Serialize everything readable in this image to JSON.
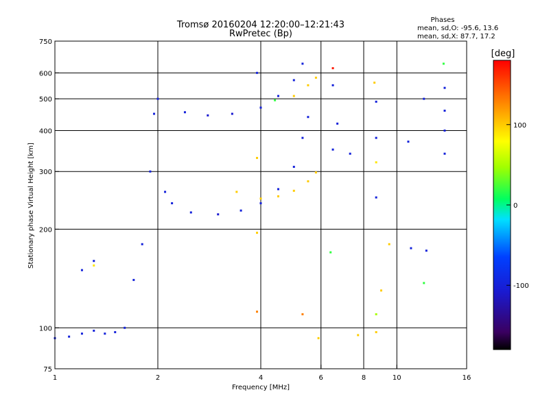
{
  "chart_data": {
    "type": "scatter",
    "title": "Tromsø 20160204 12:20:00–12:21:43",
    "subtitle": "RwPretec (Bp)",
    "xlabel": "Frequency [MHz]",
    "ylabel": "Stationary phase Virtual Height [km]",
    "x_scale": "log",
    "y_scale": "log",
    "xlim": [
      1,
      16
    ],
    "ylim": [
      75,
      750
    ],
    "x_ticks": [
      1,
      2,
      4,
      6,
      8,
      10,
      16
    ],
    "x_tick_labels": [
      "1",
      "2",
      "4",
      "6",
      "8",
      "10",
      "16"
    ],
    "y_ticks": [
      75,
      100,
      200,
      300,
      400,
      500,
      600,
      750
    ],
    "y_tick_labels": [
      "75",
      "100",
      "200",
      "300",
      "400",
      "500",
      "600",
      "750"
    ],
    "x_gridlines": [
      2,
      4,
      6,
      8,
      10
    ],
    "y_gridlines": [
      100,
      200,
      300,
      400,
      500,
      600
    ],
    "stats": {
      "heading": "Phases",
      "line1": "mean, sd,O:  -95.6,  13.6",
      "line2": "mean, sd,X:   87.7,  17.2"
    },
    "colorbar": {
      "label": "[deg]",
      "range": [
        -180,
        180
      ],
      "ticks": [
        100,
        0,
        -100
      ],
      "tick_labels": [
        "100",
        "0",
        "-100"
      ]
    },
    "series": [
      {
        "values": [
          {
            "x": 1.0,
            "y": 93,
            "c": -100
          },
          {
            "x": 1.1,
            "y": 94,
            "c": -100
          },
          {
            "x": 1.2,
            "y": 96,
            "c": -100
          },
          {
            "x": 1.3,
            "y": 98,
            "c": -100
          },
          {
            "x": 1.4,
            "y": 96,
            "c": -100
          },
          {
            "x": 1.5,
            "y": 97,
            "c": -100
          },
          {
            "x": 1.6,
            "y": 100,
            "c": -100
          },
          {
            "x": 1.2,
            "y": 150,
            "c": -100
          },
          {
            "x": 1.3,
            "y": 160,
            "c": -100
          },
          {
            "x": 1.7,
            "y": 140,
            "c": -100
          },
          {
            "x": 1.8,
            "y": 180,
            "c": -100
          },
          {
            "x": 1.9,
            "y": 300,
            "c": -100
          },
          {
            "x": 1.95,
            "y": 450,
            "c": -100
          },
          {
            "x": 2.0,
            "y": 500,
            "c": -100
          },
          {
            "x": 2.1,
            "y": 260,
            "c": -100
          },
          {
            "x": 2.2,
            "y": 240,
            "c": -100
          },
          {
            "x": 2.5,
            "y": 225,
            "c": -100
          },
          {
            "x": 3.0,
            "y": 222,
            "c": -110
          },
          {
            "x": 3.5,
            "y": 228,
            "c": -100
          },
          {
            "x": 4.0,
            "y": 240,
            "c": -100
          },
          {
            "x": 4.5,
            "y": 265,
            "c": -100
          },
          {
            "x": 5.0,
            "y": 310,
            "c": -100
          },
          {
            "x": 5.3,
            "y": 380,
            "c": -100
          },
          {
            "x": 5.5,
            "y": 440,
            "c": -100
          },
          {
            "x": 2.4,
            "y": 455,
            "c": -100
          },
          {
            "x": 2.8,
            "y": 445,
            "c": -110
          },
          {
            "x": 3.3,
            "y": 450,
            "c": -110
          },
          {
            "x": 4.0,
            "y": 470,
            "c": -100
          },
          {
            "x": 4.5,
            "y": 510,
            "c": -100
          },
          {
            "x": 5.0,
            "y": 570,
            "c": -100
          },
          {
            "x": 5.3,
            "y": 640,
            "c": -100
          }
        ]
      },
      {
        "values": [
          {
            "x": 1.3,
            "y": 155,
            "c": 90
          },
          {
            "x": 3.4,
            "y": 260,
            "c": 100
          },
          {
            "x": 4.0,
            "y": 248,
            "c": 100
          },
          {
            "x": 4.5,
            "y": 252,
            "c": 100
          },
          {
            "x": 5.0,
            "y": 262,
            "c": 100
          },
          {
            "x": 5.5,
            "y": 280,
            "c": 100
          },
          {
            "x": 5.8,
            "y": 298,
            "c": 100
          },
          {
            "x": 5.0,
            "y": 510,
            "c": 100
          },
          {
            "x": 5.5,
            "y": 550,
            "c": 100
          },
          {
            "x": 5.8,
            "y": 580,
            "c": 100
          },
          {
            "x": 4.4,
            "y": 495,
            "c": 20
          }
        ]
      },
      {
        "values": [
          {
            "x": 6.5,
            "y": 620,
            "c": 170
          },
          {
            "x": 6.5,
            "y": 550,
            "c": -100
          },
          {
            "x": 6.7,
            "y": 420,
            "c": -100
          },
          {
            "x": 6.5,
            "y": 350,
            "c": -100
          },
          {
            "x": 7.3,
            "y": 340,
            "c": -100
          },
          {
            "x": 8.6,
            "y": 560,
            "c": 100
          },
          {
            "x": 8.7,
            "y": 490,
            "c": -100
          },
          {
            "x": 8.7,
            "y": 380,
            "c": -100
          },
          {
            "x": 8.7,
            "y": 320,
            "c": 90
          },
          {
            "x": 8.7,
            "y": 250,
            "c": -100
          },
          {
            "x": 9.5,
            "y": 180,
            "c": 100
          },
          {
            "x": 10.8,
            "y": 370,
            "c": -100
          },
          {
            "x": 11.0,
            "y": 175,
            "c": -100
          },
          {
            "x": 12.0,
            "y": 500,
            "c": -100
          },
          {
            "x": 12.2,
            "y": 172,
            "c": -100
          },
          {
            "x": 13.7,
            "y": 640,
            "c": 20
          },
          {
            "x": 13.8,
            "y": 540,
            "c": -100
          },
          {
            "x": 13.8,
            "y": 460,
            "c": -100
          },
          {
            "x": 13.8,
            "y": 400,
            "c": -100
          },
          {
            "x": 13.8,
            "y": 340,
            "c": -100
          },
          {
            "x": 12.0,
            "y": 137,
            "c": 20
          },
          {
            "x": 9.0,
            "y": 130,
            "c": 100
          },
          {
            "x": 8.7,
            "y": 110,
            "c": 50
          },
          {
            "x": 8.7,
            "y": 97,
            "c": 100
          },
          {
            "x": 7.7,
            "y": 95,
            "c": 100
          },
          {
            "x": 5.9,
            "y": 93,
            "c": 100
          },
          {
            "x": 5.3,
            "y": 110,
            "c": 130
          },
          {
            "x": 6.4,
            "y": 170,
            "c": 20
          },
          {
            "x": 3.9,
            "y": 195,
            "c": 100
          },
          {
            "x": 3.9,
            "y": 112,
            "c": 130
          },
          {
            "x": 3.9,
            "y": 330,
            "c": 100
          },
          {
            "x": 3.9,
            "y": 600,
            "c": -100
          }
        ]
      }
    ]
  }
}
